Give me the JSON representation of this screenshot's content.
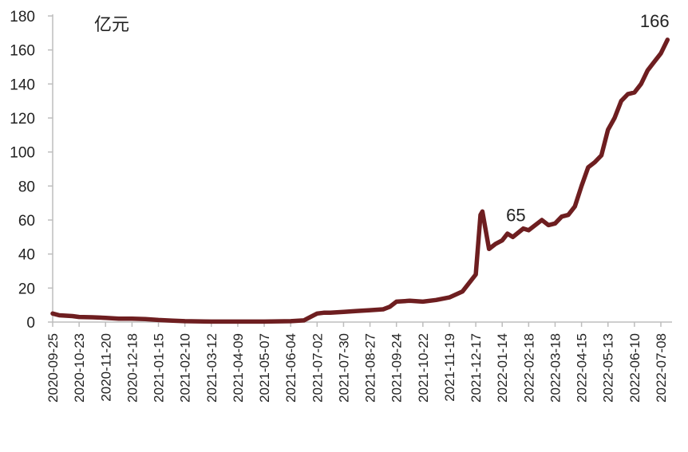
{
  "chart_data": {
    "type": "line",
    "unit_label": "亿元",
    "ylim": [
      0,
      180
    ],
    "y_ticks": [
      0,
      20,
      40,
      60,
      80,
      100,
      120,
      140,
      160,
      180
    ],
    "x_tick_labels": [
      "2020-09-25",
      "2020-10-23",
      "2020-11-20",
      "2020-12-18",
      "2021-01-15",
      "2021-02-10",
      "2021-03-12",
      "2021-04-09",
      "2021-05-07",
      "2021-06-04",
      "2021-07-02",
      "2021-07-30",
      "2021-08-27",
      "2021-09-24",
      "2021-10-22",
      "2021-11-19",
      "2021-12-17",
      "2022-01-14",
      "2022-02-18",
      "2022-03-18",
      "2022-04-15",
      "2022-05-13",
      "2022-06-10",
      "2022-07-08"
    ],
    "line_color": "#6e1e20",
    "grid": false,
    "series": [
      {
        "points": [
          [
            "2020-09-25",
            5
          ],
          [
            "2020-10-02",
            4
          ],
          [
            "2020-10-16",
            3.5
          ],
          [
            "2020-10-23",
            3
          ],
          [
            "2020-11-06",
            2.8
          ],
          [
            "2020-11-20",
            2.5
          ],
          [
            "2020-12-04",
            2
          ],
          [
            "2020-12-18",
            2
          ],
          [
            "2021-01-01",
            1.8
          ],
          [
            "2021-01-15",
            1.2
          ],
          [
            "2021-01-29",
            0.8
          ],
          [
            "2021-02-10",
            0.5
          ],
          [
            "2021-03-12",
            0.3
          ],
          [
            "2021-04-09",
            0.3
          ],
          [
            "2021-05-07",
            0.3
          ],
          [
            "2021-06-04",
            0.5
          ],
          [
            "2021-06-18",
            1
          ],
          [
            "2021-06-25",
            3
          ],
          [
            "2021-07-02",
            5
          ],
          [
            "2021-07-09",
            5.5
          ],
          [
            "2021-07-16",
            5.5
          ],
          [
            "2021-07-30",
            6
          ],
          [
            "2021-08-13",
            6.5
          ],
          [
            "2021-08-27",
            7
          ],
          [
            "2021-09-10",
            7.5
          ],
          [
            "2021-09-17",
            9
          ],
          [
            "2021-09-24",
            12
          ],
          [
            "2021-10-08",
            12.5
          ],
          [
            "2021-10-22",
            12
          ],
          [
            "2021-11-05",
            13
          ],
          [
            "2021-11-19",
            14.5
          ],
          [
            "2021-12-03",
            18
          ],
          [
            "2021-12-10",
            23
          ],
          [
            "2021-12-17",
            28
          ],
          [
            "2021-12-22",
            63
          ],
          [
            "2021-12-24",
            65
          ],
          [
            "2021-12-31",
            43
          ],
          [
            "2022-01-07",
            46
          ],
          [
            "2022-01-14",
            48
          ],
          [
            "2022-01-21",
            52
          ],
          [
            "2022-01-28",
            50
          ],
          [
            "2022-02-11",
            55
          ],
          [
            "2022-02-18",
            54
          ],
          [
            "2022-03-04",
            60
          ],
          [
            "2022-03-11",
            57
          ],
          [
            "2022-03-18",
            58
          ],
          [
            "2022-03-25",
            62
          ],
          [
            "2022-04-01",
            63
          ],
          [
            "2022-04-08",
            68
          ],
          [
            "2022-04-15",
            80
          ],
          [
            "2022-04-22",
            91
          ],
          [
            "2022-04-29",
            94
          ],
          [
            "2022-05-06",
            98
          ],
          [
            "2022-05-13",
            113
          ],
          [
            "2022-05-20",
            120
          ],
          [
            "2022-05-27",
            130
          ],
          [
            "2022-06-03",
            134
          ],
          [
            "2022-06-10",
            135
          ],
          [
            "2022-06-17",
            140
          ],
          [
            "2022-06-24",
            148
          ],
          [
            "2022-07-01",
            153
          ],
          [
            "2022-07-08",
            158
          ],
          [
            "2022-07-15",
            166
          ]
        ]
      }
    ],
    "annotations": [
      {
        "date": "2021-12-24",
        "value": 65,
        "text": "65"
      },
      {
        "date": "2022-07-15",
        "value": 166,
        "text": "166"
      }
    ]
  }
}
